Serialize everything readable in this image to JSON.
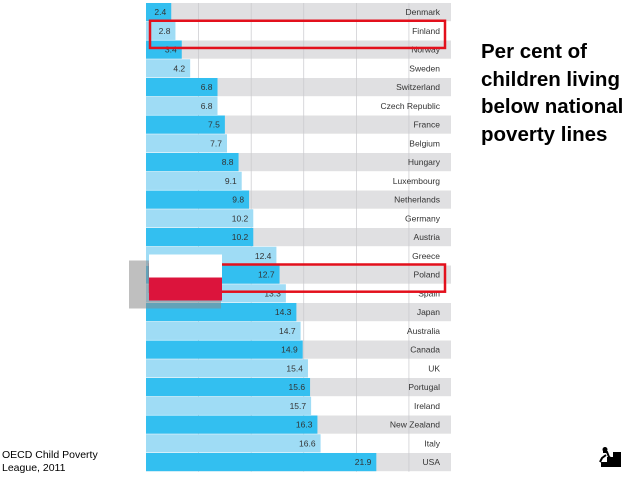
{
  "slide": {
    "title": "Per cent of children living below national poverty lines",
    "source": "OECD Child Poverty League, 2011"
  },
  "chart_data": {
    "type": "bar",
    "orientation": "horizontal",
    "title": "Per cent of children living below national poverty lines",
    "xlabel": "",
    "ylabel": "",
    "xlim": [
      0,
      29
    ],
    "grid": true,
    "categories": [
      "Denmark",
      "Finland",
      "Norway",
      "Sweden",
      "Switzerland",
      "Czech Republic",
      "France",
      "Belgium",
      "Hungary",
      "Luxembourg",
      "Netherlands",
      "Germany",
      "Austria",
      "Greece",
      "Poland",
      "Spain",
      "Japan",
      "Australia",
      "Canada",
      "UK",
      "Portugal",
      "Ireland",
      "New Zealand",
      "Italy",
      "USA"
    ],
    "values": [
      2.4,
      2.8,
      3.4,
      4.2,
      6.8,
      6.8,
      7.5,
      7.7,
      8.8,
      9.1,
      9.8,
      10.2,
      10.2,
      12.4,
      12.7,
      13.3,
      14.3,
      14.7,
      14.9,
      15.4,
      15.6,
      15.7,
      16.3,
      16.6,
      21.9
    ],
    "value_labels": [
      "2.4",
      "2.8",
      "3.4",
      "4.2",
      "6.8",
      "6.8",
      "7.5",
      "7.7",
      "8.8",
      "9.1",
      "9.8",
      "10.2",
      "10.2",
      "12.4",
      "12.7",
      "13.3",
      "14.3",
      "14.7",
      "14.9",
      "15.4",
      "15.6",
      "15.7",
      "16.3",
      "16.6",
      "21.9"
    ],
    "highlighted": [
      "Finland",
      "Poland"
    ],
    "colors": {
      "bar_dark": "#33bff0",
      "bar_light": "#9fdcf5",
      "track_dark": "#e0e0e2",
      "track_light": "#ffffff",
      "highlight": "#e3101c",
      "flag_white": "#ffffff",
      "flag_red": "#dc143c"
    }
  }
}
